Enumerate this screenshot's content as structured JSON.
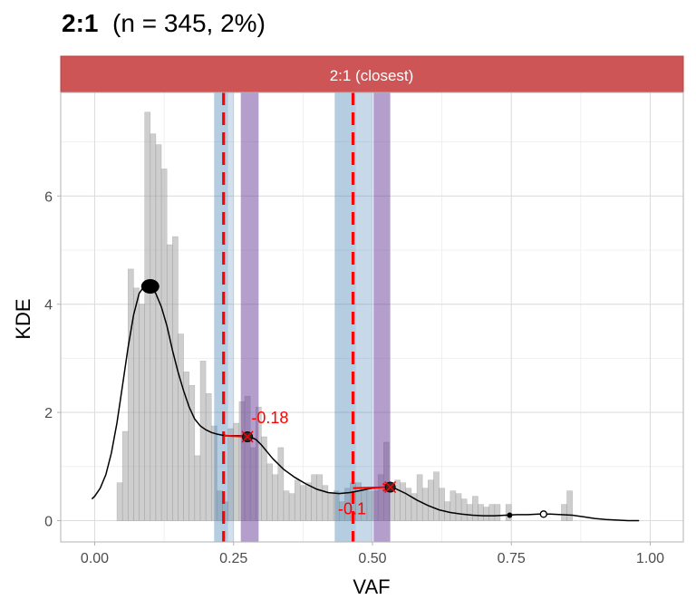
{
  "title": {
    "main": "2:1",
    "rest": "(n = 345, 2%)"
  },
  "chart_data": {
    "type": "bar",
    "title": "2:1 (n = 345, 2%)",
    "facet_label": "2:1 (closest)",
    "xlabel": "VAF",
    "ylabel": "KDE",
    "xlim": [
      -0.06,
      1.06
    ],
    "ylim": [
      -0.35,
      7.9
    ],
    "x_ticks": [
      0,
      0.25,
      0.5,
      0.75,
      1
    ],
    "x_tick_labels": [
      "0.00",
      "0.25",
      "0.50",
      "0.75",
      "1.00"
    ],
    "y_ticks": [
      0,
      2,
      4,
      6
    ],
    "y_tick_labels": [
      "0",
      "2",
      "4",
      "6"
    ],
    "grid": true,
    "histogram": {
      "bin_width": 0.01,
      "bins": [
        {
          "x": 0.045,
          "y": 0.7
        },
        {
          "x": 0.055,
          "y": 1.65
        },
        {
          "x": 0.065,
          "y": 4.65
        },
        {
          "x": 0.075,
          "y": 4.3
        },
        {
          "x": 0.085,
          "y": 4.0
        },
        {
          "x": 0.095,
          "y": 7.55
        },
        {
          "x": 0.105,
          "y": 7.15
        },
        {
          "x": 0.115,
          "y": 6.95
        },
        {
          "x": 0.125,
          "y": 6.5
        },
        {
          "x": 0.135,
          "y": 5.1
        },
        {
          "x": 0.145,
          "y": 5.25
        },
        {
          "x": 0.155,
          "y": 3.45
        },
        {
          "x": 0.165,
          "y": 2.75
        },
        {
          "x": 0.175,
          "y": 2.5
        },
        {
          "x": 0.185,
          "y": 1.2
        },
        {
          "x": 0.195,
          "y": 2.95
        },
        {
          "x": 0.205,
          "y": 2.35
        },
        {
          "x": 0.215,
          "y": 1.75
        },
        {
          "x": 0.225,
          "y": 0.55
        },
        {
          "x": 0.235,
          "y": 0.35
        },
        {
          "x": 0.245,
          "y": 1.7
        },
        {
          "x": 0.255,
          "y": 1.8
        },
        {
          "x": 0.265,
          "y": 2.2
        },
        {
          "x": 0.275,
          "y": 2.3
        },
        {
          "x": 0.285,
          "y": 1.35
        },
        {
          "x": 0.295,
          "y": 2.1
        },
        {
          "x": 0.305,
          "y": 1.55
        },
        {
          "x": 0.315,
          "y": 1.05
        },
        {
          "x": 0.325,
          "y": 0.85
        },
        {
          "x": 0.335,
          "y": 1.35
        },
        {
          "x": 0.345,
          "y": 0.55
        },
        {
          "x": 0.355,
          "y": 0.5
        },
        {
          "x": 0.365,
          "y": 0.75
        },
        {
          "x": 0.375,
          "y": 0.65
        },
        {
          "x": 0.385,
          "y": 0.7
        },
        {
          "x": 0.395,
          "y": 0.85
        },
        {
          "x": 0.405,
          "y": 0.85
        },
        {
          "x": 0.415,
          "y": 0.65
        },
        {
          "x": 0.425,
          "y": 0.5
        },
        {
          "x": 0.435,
          "y": 0.55
        },
        {
          "x": 0.445,
          "y": 0.35
        },
        {
          "x": 0.455,
          "y": 0.6
        },
        {
          "x": 0.465,
          "y": 0.7
        },
        {
          "x": 0.475,
          "y": 0.7
        },
        {
          "x": 0.485,
          "y": 0.6
        },
        {
          "x": 0.495,
          "y": 0.55
        },
        {
          "x": 0.505,
          "y": 0.55
        },
        {
          "x": 0.515,
          "y": 0.85
        },
        {
          "x": 0.525,
          "y": 1.45
        },
        {
          "x": 0.535,
          "y": 0.65
        },
        {
          "x": 0.545,
          "y": 0.75
        },
        {
          "x": 0.555,
          "y": 0.7
        },
        {
          "x": 0.565,
          "y": 0.6
        },
        {
          "x": 0.575,
          "y": 0.5
        },
        {
          "x": 0.585,
          "y": 0.85
        },
        {
          "x": 0.595,
          "y": 0.6
        },
        {
          "x": 0.605,
          "y": 0.75
        },
        {
          "x": 0.615,
          "y": 0.9
        },
        {
          "x": 0.625,
          "y": 0.6
        },
        {
          "x": 0.635,
          "y": 0.35
        },
        {
          "x": 0.645,
          "y": 0.55
        },
        {
          "x": 0.655,
          "y": 0.5
        },
        {
          "x": 0.665,
          "y": 0.4
        },
        {
          "x": 0.675,
          "y": 0.3
        },
        {
          "x": 0.685,
          "y": 0.45
        },
        {
          "x": 0.695,
          "y": 0.3
        },
        {
          "x": 0.705,
          "y": 0.25
        },
        {
          "x": 0.715,
          "y": 0.3
        },
        {
          "x": 0.725,
          "y": 0.3
        },
        {
          "x": 0.745,
          "y": 0.3
        },
        {
          "x": 0.845,
          "y": 0.3
        },
        {
          "x": 0.855,
          "y": 0.55
        }
      ]
    },
    "kde_curve": {
      "x": [
        -0.005,
        0.0,
        0.01,
        0.02,
        0.03,
        0.04,
        0.05,
        0.06,
        0.07,
        0.08,
        0.09,
        0.1,
        0.11,
        0.12,
        0.13,
        0.14,
        0.15,
        0.16,
        0.17,
        0.18,
        0.19,
        0.2,
        0.21,
        0.22,
        0.23,
        0.24,
        0.25,
        0.26,
        0.27,
        0.28,
        0.29,
        0.3,
        0.32,
        0.34,
        0.36,
        0.38,
        0.4,
        0.42,
        0.44,
        0.46,
        0.48,
        0.5,
        0.52,
        0.54,
        0.56,
        0.58,
        0.6,
        0.62,
        0.64,
        0.66,
        0.68,
        0.7,
        0.72,
        0.74,
        0.76,
        0.78,
        0.8,
        0.82,
        0.84,
        0.86,
        0.88,
        0.9,
        0.92,
        0.94,
        0.96,
        0.98
      ],
      "y": [
        0.4,
        0.45,
        0.6,
        0.85,
        1.25,
        1.8,
        2.5,
        3.2,
        3.8,
        4.2,
        4.35,
        4.33,
        4.2,
        3.95,
        3.6,
        3.15,
        2.75,
        2.4,
        2.1,
        1.88,
        1.75,
        1.68,
        1.63,
        1.6,
        1.58,
        1.57,
        1.57,
        1.57,
        1.56,
        1.55,
        1.5,
        1.4,
        1.15,
        0.95,
        0.8,
        0.68,
        0.58,
        0.52,
        0.5,
        0.52,
        0.56,
        0.6,
        0.62,
        0.6,
        0.5,
        0.38,
        0.28,
        0.2,
        0.15,
        0.12,
        0.1,
        0.09,
        0.09,
        0.1,
        0.11,
        0.11,
        0.12,
        0.12,
        0.11,
        0.1,
        0.07,
        0.04,
        0.02,
        0.01,
        0.0,
        0.0
      ]
    },
    "bands": [
      {
        "xmin": 0.215,
        "xmax": 0.24,
        "color": "#4682b4",
        "opacity": 0.4
      },
      {
        "xmin": 0.24,
        "xmax": 0.25,
        "color": "#4682b4",
        "opacity": 0.25
      },
      {
        "xmin": 0.263,
        "xmax": 0.295,
        "color": "#6a3d9a",
        "opacity": 0.5
      },
      {
        "xmin": 0.432,
        "xmax": 0.47,
        "color": "#4682b4",
        "opacity": 0.4
      },
      {
        "xmin": 0.47,
        "xmax": 0.5,
        "color": "#4682b4",
        "opacity": 0.3
      },
      {
        "xmin": 0.502,
        "xmax": 0.532,
        "color": "#6a3d9a",
        "opacity": 0.5
      }
    ],
    "dashed_lines": [
      {
        "x": 0.232,
        "color": "#ff0000"
      },
      {
        "x": 0.465,
        "color": "#ff0000"
      }
    ],
    "arrows": [
      {
        "x0": 0.232,
        "y0": 1.57,
        "x1": 0.28,
        "y1": 1.55,
        "label": "-0.18",
        "label_x": 0.282,
        "label_y": 1.9
      },
      {
        "x0": 0.465,
        "y0": 0.6,
        "x1": 0.532,
        "y1": 0.62,
        "label": "-0.1",
        "label_x": 0.438,
        "label_y": 0.22
      }
    ],
    "peaks": [
      {
        "x": 0.1,
        "y": 4.33,
        "kind": "large-filled"
      },
      {
        "x": 0.275,
        "y": 1.55,
        "kind": "cross-marker"
      },
      {
        "x": 0.532,
        "y": 0.62,
        "kind": "cross-marker"
      },
      {
        "x": 0.747,
        "y": 0.1,
        "kind": "small-filled"
      },
      {
        "x": 0.808,
        "y": 0.12,
        "kind": "open"
      }
    ]
  }
}
